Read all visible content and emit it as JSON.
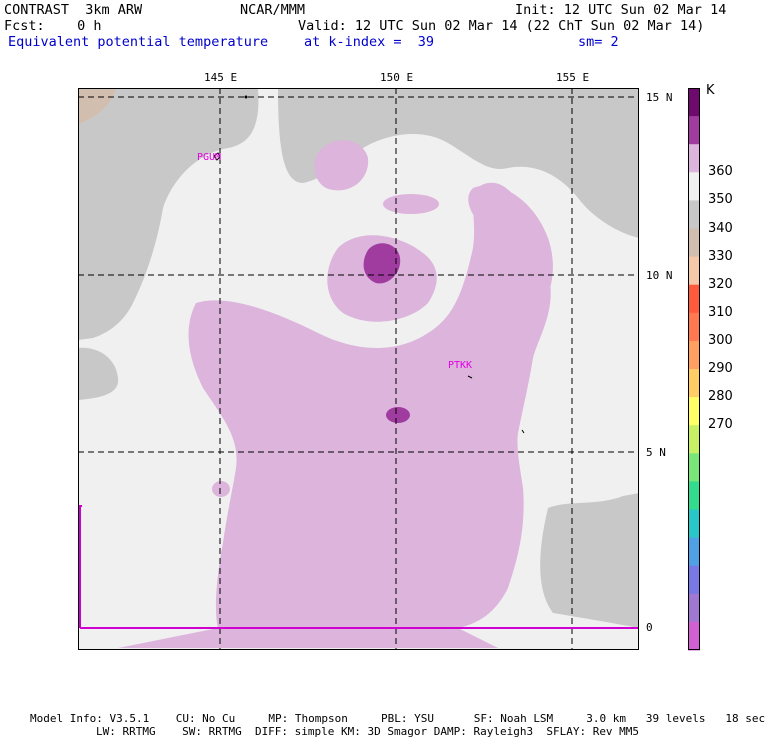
{
  "header": {
    "model": "CONTRAST  3km ARW",
    "org": "NCAR/MMM",
    "init": "Init: 12 UTC Sun 02 Mar 14",
    "fcst": "Fcst:    0 h",
    "valid": "Valid: 12 UTC Sun 02 Mar 14 (22 ChT Sun 02 Mar 14)",
    "field": "Equivalent potential temperature",
    "level": "at k-index =  39",
    "smooth": "sm= 2"
  },
  "map": {
    "lon_labels": [
      "145 E",
      "150 E",
      "155 E"
    ],
    "lat_labels": [
      "15 N",
      "10 N",
      "5 N",
      "0"
    ],
    "stations": [
      "PGUM",
      "PTKK"
    ]
  },
  "colorbar": {
    "unit": "K",
    "labels": [
      "360",
      "350",
      "340",
      "330",
      "320",
      "310",
      "300",
      "290",
      "280",
      "270"
    ],
    "colors": [
      "#6e0a6e",
      "#a03ca0",
      "#dcb4dc",
      "#f0f0f0",
      "#c8c8c8",
      "#d2beaf",
      "#f5c8aa",
      "#ff5a3c",
      "#ff7850",
      "#ffa060",
      "#ffcc66",
      "#ffff66",
      "#c8f064",
      "#78e678",
      "#32dc8c",
      "#28c8c8",
      "#50a0e6",
      "#7878e6",
      "#a078d2",
      "#d260d2"
    ]
  },
  "footer": {
    "line1": "Model Info: V3.5.1    CU: No Cu     MP: Thompson     PBL: YSU      SF: Noah LSM     3.0 km   39 levels   18 sec",
    "line2": "LW: RRTMG    SW: RRTMG  DIFF: simple KM: 3D Smagor DAMP: Rayleigh3  SFLAY: Rev MM5"
  }
}
